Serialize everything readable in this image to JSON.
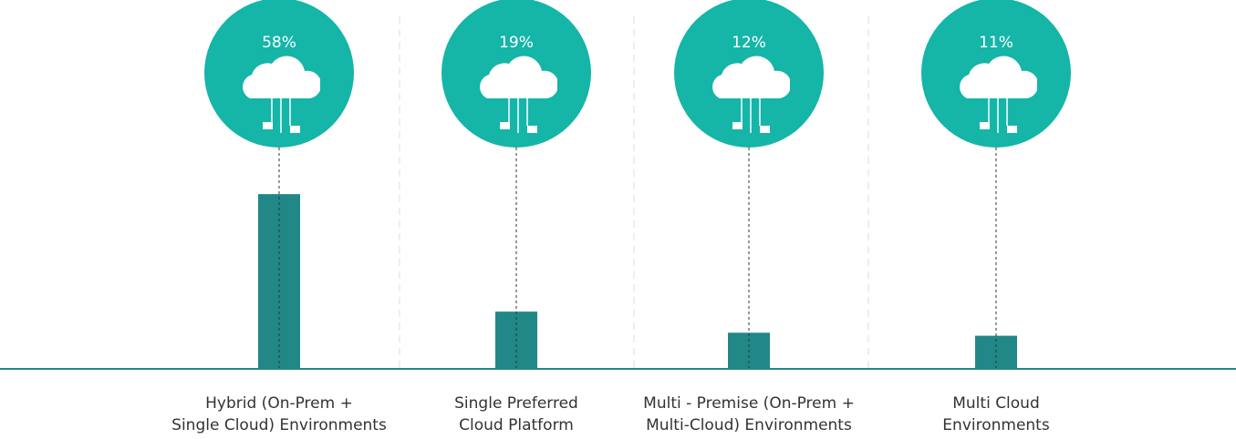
{
  "chart_data": {
    "type": "bar",
    "categories": [
      "Hybrid (On-Prem +\nSingle Cloud) Environments",
      "Single Preferred\nCloud Platform",
      "Multi - Premise (On-Prem +\nMulti-Cloud) Environments",
      "Multi Cloud\nEnvironments"
    ],
    "values": [
      58,
      19,
      12,
      11
    ],
    "value_labels": [
      "58%",
      "19%",
      "12%",
      "11%"
    ],
    "color": "#228787",
    "circle_color": "#15b5a8",
    "ylim": [
      0,
      120
    ]
  }
}
